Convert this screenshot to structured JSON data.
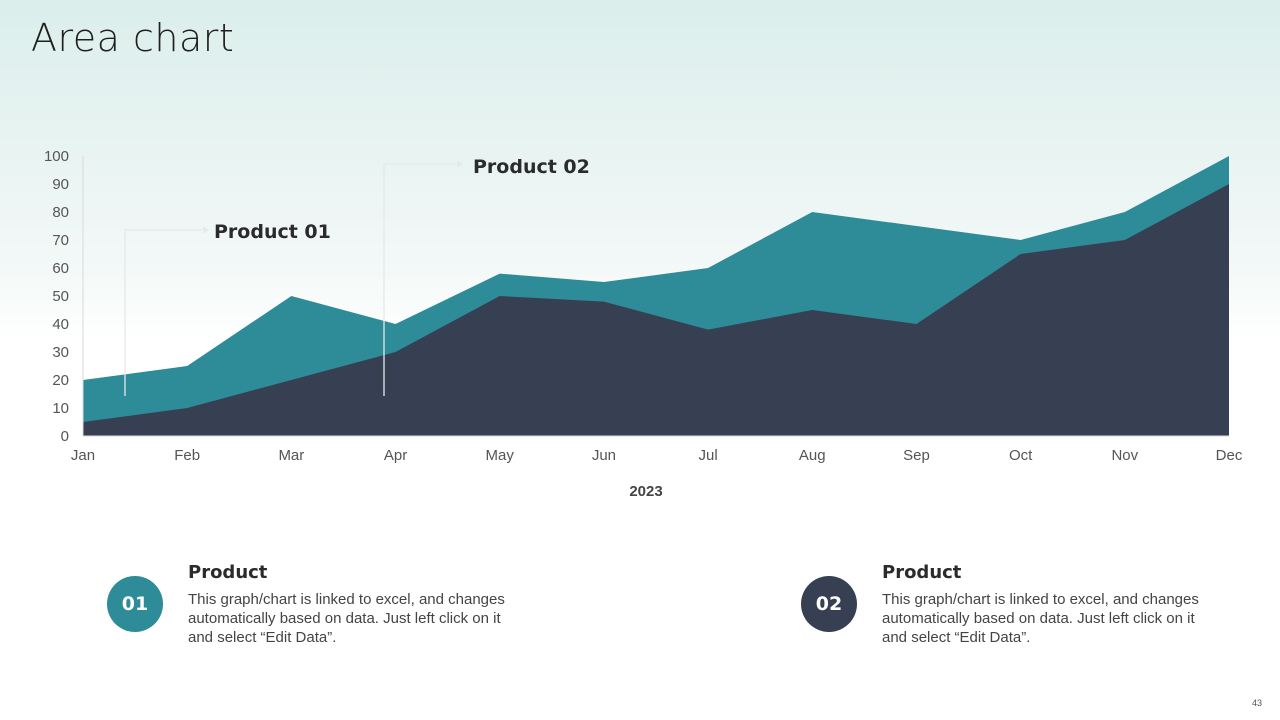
{
  "slide": {
    "title": "Area chart",
    "page_number": "43"
  },
  "callouts": [
    {
      "label": "Product 01"
    },
    {
      "label": "Product 02"
    }
  ],
  "cards": [
    {
      "badge": "01",
      "title": "Product",
      "text": "This graph/chart is linked to excel, and changes automatically based on data. Just left click on it and select “Edit Data”.",
      "color": "#2e8b98"
    },
    {
      "badge": "02",
      "title": "Product",
      "text": "This graph/chart is linked to excel, and changes automatically based on data. Just left click on it and select “Edit Data”.",
      "color": "#373f52"
    }
  ],
  "colors": {
    "series_back": "#2e8b98",
    "series_front": "#373f52"
  },
  "chart_data": {
    "type": "area",
    "categories": [
      "Jan",
      "Feb",
      "Mar",
      "Apr",
      "May",
      "Jun",
      "Jul",
      "Aug",
      "Sep",
      "Oct",
      "Nov",
      "Dec"
    ],
    "series": [
      {
        "values": [
          20,
          25,
          50,
          40,
          58,
          55,
          60,
          80,
          75,
          70,
          80,
          100
        ]
      },
      {
        "values": [
          5,
          10,
          20,
          30,
          50,
          48,
          38,
          45,
          40,
          65,
          70,
          90
        ]
      }
    ],
    "xlabel": "2023",
    "ylabel": "",
    "ylim": [
      0,
      100
    ],
    "yticks": [
      0,
      10,
      20,
      30,
      40,
      50,
      60,
      70,
      80,
      90,
      100
    ],
    "grid": false,
    "legend": "none"
  }
}
